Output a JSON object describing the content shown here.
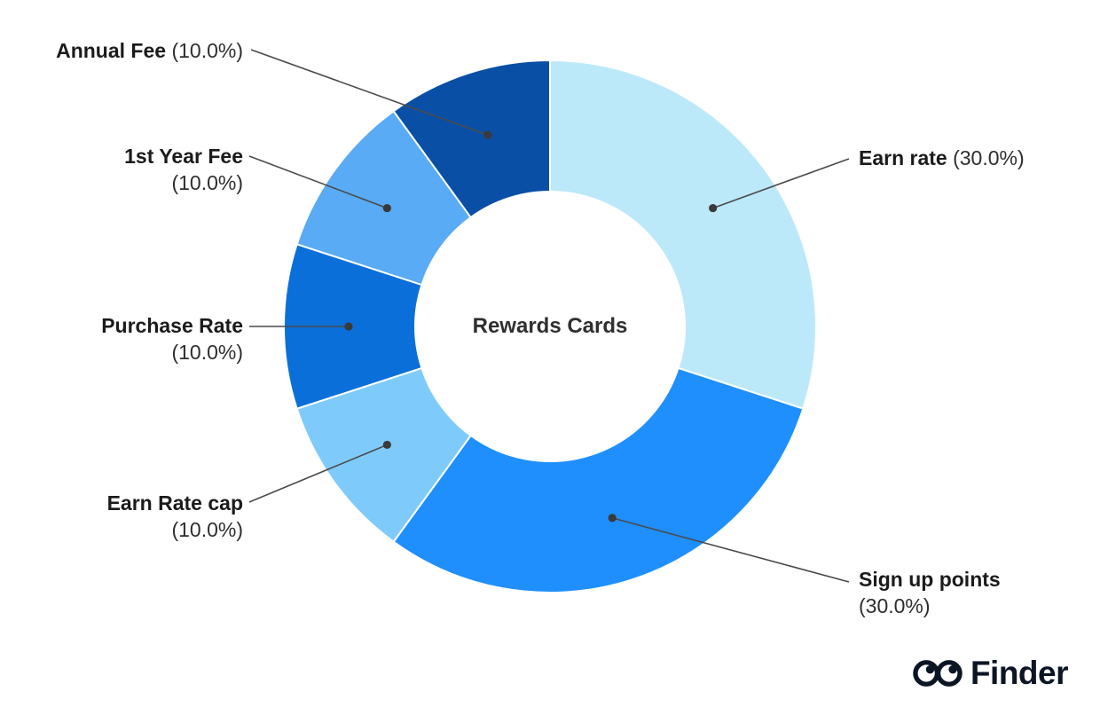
{
  "chart_data": {
    "type": "pie",
    "donut": true,
    "title": "Rewards Cards",
    "start_angle_deg": 0,
    "direction": "clockwise",
    "legend_position": "none",
    "leader_line_color": "#4a4a4a",
    "leader_dot_color": "#3a3a3a",
    "slices": [
      {
        "label": "Earn rate",
        "pct_text": "(30.0%)",
        "value": 30.0,
        "color": "#BCE9FA"
      },
      {
        "label": "Sign up points",
        "pct_text": "(30.0%)",
        "value": 30.0,
        "color": "#1F8FFE"
      },
      {
        "label": "Earn Rate cap",
        "pct_text": "(10.0%)",
        "value": 10.0,
        "color": "#7ECBFB"
      },
      {
        "label": "Purchase Rate",
        "pct_text": "(10.0%)",
        "value": 10.0,
        "color": "#0B6FD9"
      },
      {
        "label": "1st Year Fee",
        "pct_text": "(10.0%)",
        "value": 10.0,
        "color": "#58ABF4"
      },
      {
        "label": "Annual Fee",
        "pct_text": "(10.0%)",
        "value": 10.0,
        "color": "#0A4FA6"
      }
    ]
  },
  "logo": {
    "text": "Finder",
    "color": "#0c1524"
  }
}
